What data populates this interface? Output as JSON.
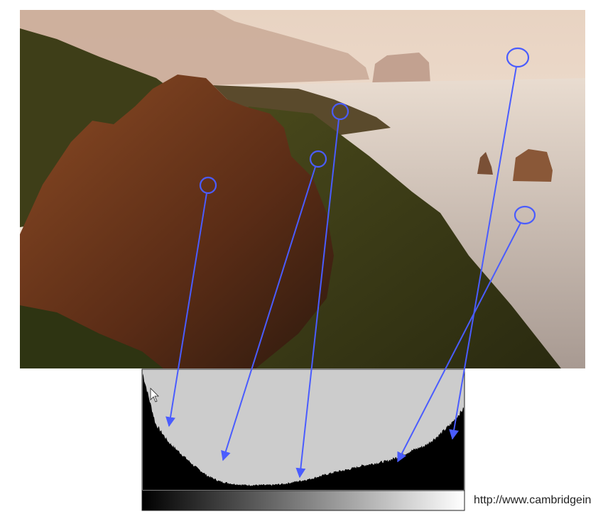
{
  "footer": {
    "url_text": "http://www.cambridgein"
  },
  "colors": {
    "annotation": "#4a5cff",
    "histogram_bg": "#cccccc",
    "histogram_fill": "#000000",
    "sky": "#f4e6d8",
    "rock": "#6e3a1e",
    "vegetation": "#3a3a14",
    "sea": "#cbbcb2"
  },
  "icons": {
    "cursor": "mouse-pointer-icon"
  },
  "chart_data": {
    "type": "area",
    "title": "",
    "xlabel": "",
    "ylabel": "",
    "x": [
      0,
      4,
      8,
      12,
      16,
      20,
      24,
      28,
      32,
      36,
      40,
      44,
      48,
      52,
      56,
      60,
      64,
      68,
      72,
      76,
      80,
      84,
      88,
      92,
      96,
      100
    ],
    "values": [
      0.97,
      0.55,
      0.4,
      0.3,
      0.2,
      0.12,
      0.07,
      0.05,
      0.04,
      0.04,
      0.04,
      0.05,
      0.07,
      0.09,
      0.12,
      0.15,
      0.17,
      0.2,
      0.22,
      0.24,
      0.28,
      0.33,
      0.37,
      0.45,
      0.55,
      0.68
    ],
    "ylim": [
      0,
      1
    ],
    "xlim": [
      0,
      100
    ],
    "grid": false,
    "legend": "none"
  }
}
